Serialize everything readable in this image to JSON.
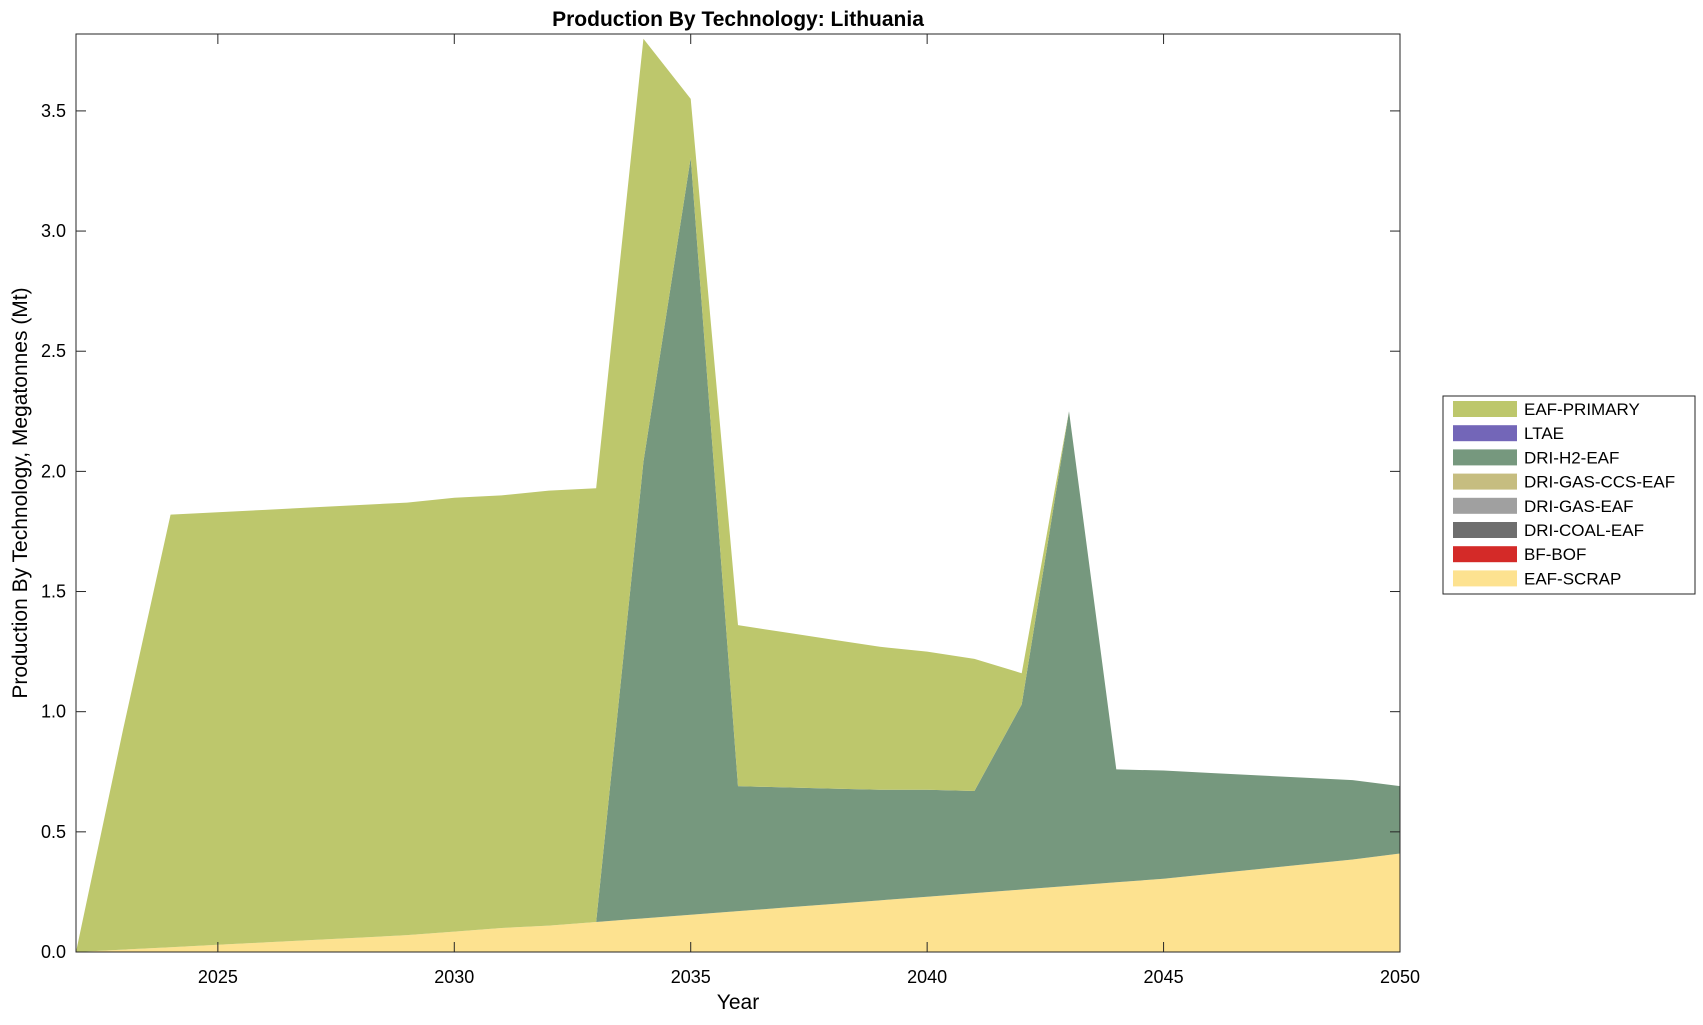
{
  "chart_data": {
    "type": "area",
    "stacked": true,
    "title": "Production By Technology: Lithuania",
    "xlabel": "Year",
    "ylabel": "Production By Technology, Megatonnes (Mt)",
    "xlim": [
      2022,
      2050
    ],
    "ylim": [
      0,
      3.82
    ],
    "xticks": [
      2025,
      2030,
      2035,
      2040,
      2045,
      2050
    ],
    "xtick_labels": [
      "2025",
      "2030",
      "2035",
      "2040",
      "2045",
      "2050"
    ],
    "yticks": [
      0,
      0.5,
      1,
      1.5,
      2,
      2.5,
      3,
      3.5
    ],
    "ytick_labels": [
      "0.0",
      "0.5",
      "1.0",
      "1.5",
      "2.0",
      "2.5",
      "3.0",
      "3.5"
    ],
    "grid": false,
    "legend_position": "outside-right",
    "legend_order": [
      "EAF-PRIMARY",
      "LTAE",
      "DRI-H2-EAF",
      "DRI-GAS-CCS-EAF",
      "DRI-GAS-EAF",
      "DRI-COAL-EAF",
      "BF-BOF",
      "EAF-SCRAP"
    ],
    "x": [
      2022,
      2023,
      2024,
      2025,
      2026,
      2027,
      2028,
      2029,
      2030,
      2031,
      2032,
      2033,
      2034,
      2035,
      2036,
      2037,
      2038,
      2039,
      2040,
      2041,
      2042,
      2043,
      2044,
      2045,
      2046,
      2047,
      2048,
      2049,
      2050
    ],
    "series": [
      {
        "name": "EAF-SCRAP",
        "color": "#FDE290",
        "values": [
          0.0,
          0.01,
          0.02,
          0.03,
          0.04,
          0.05,
          0.06,
          0.07,
          0.085,
          0.1,
          0.11,
          0.125,
          0.14,
          0.155,
          0.17,
          0.185,
          0.2,
          0.215,
          0.23,
          0.245,
          0.26,
          0.275,
          0.29,
          0.305,
          0.325,
          0.345,
          0.365,
          0.385,
          0.41
        ]
      },
      {
        "name": "BF-BOF",
        "color": "#D42A28",
        "values": [
          0,
          0,
          0,
          0,
          0,
          0,
          0,
          0,
          0,
          0,
          0,
          0,
          0,
          0,
          0,
          0,
          0,
          0,
          0,
          0,
          0,
          0,
          0,
          0,
          0,
          0,
          0,
          0,
          0
        ]
      },
      {
        "name": "DRI-COAL-EAF",
        "color": "#6E6E6E",
        "values": [
          0,
          0,
          0,
          0,
          0,
          0,
          0,
          0,
          0,
          0,
          0,
          0,
          0,
          0,
          0,
          0,
          0,
          0,
          0,
          0,
          0,
          0,
          0,
          0,
          0,
          0,
          0,
          0,
          0
        ]
      },
      {
        "name": "DRI-GAS-EAF",
        "color": "#A0A0A0",
        "values": [
          0,
          0,
          0,
          0,
          0,
          0,
          0,
          0,
          0,
          0,
          0,
          0,
          0,
          0,
          0,
          0,
          0,
          0,
          0,
          0,
          0,
          0,
          0,
          0,
          0,
          0,
          0,
          0,
          0
        ]
      },
      {
        "name": "DRI-GAS-CCS-EAF",
        "color": "#C6BD80",
        "values": [
          0,
          0,
          0,
          0,
          0,
          0,
          0,
          0,
          0,
          0,
          0,
          0,
          0,
          0,
          0,
          0,
          0,
          0,
          0,
          0,
          0,
          0,
          0,
          0,
          0,
          0,
          0,
          0,
          0
        ]
      },
      {
        "name": "DRI-H2-EAF",
        "color": "#76987E",
        "values": [
          0,
          0,
          0,
          0,
          0,
          0,
          0,
          0,
          0,
          0,
          0,
          0,
          1.9,
          3.15,
          0.52,
          0.5,
          0.48,
          0.46,
          0.445,
          0.425,
          0.77,
          1.975,
          0.47,
          0.45,
          0.42,
          0.39,
          0.36,
          0.33,
          0.28
        ]
      },
      {
        "name": "LTAE",
        "color": "#7366B8",
        "values": [
          0,
          0,
          0,
          0,
          0,
          0,
          0,
          0,
          0,
          0,
          0,
          0,
          0,
          0,
          0,
          0,
          0,
          0,
          0,
          0,
          0,
          0,
          0,
          0,
          0,
          0,
          0,
          0,
          0
        ]
      },
      {
        "name": "EAF-PRIMARY",
        "color": "#BDC76C",
        "values": [
          0.0,
          0.92,
          1.8,
          1.8,
          1.8,
          1.8,
          1.8,
          1.8,
          1.805,
          1.8,
          1.81,
          1.805,
          1.76,
          0.245,
          0.67,
          0.645,
          0.62,
          0.595,
          0.575,
          0.55,
          0.13,
          0.0,
          0.0,
          0.0,
          0.0,
          0.0,
          0.0,
          0.0,
          0.0
        ]
      }
    ]
  }
}
